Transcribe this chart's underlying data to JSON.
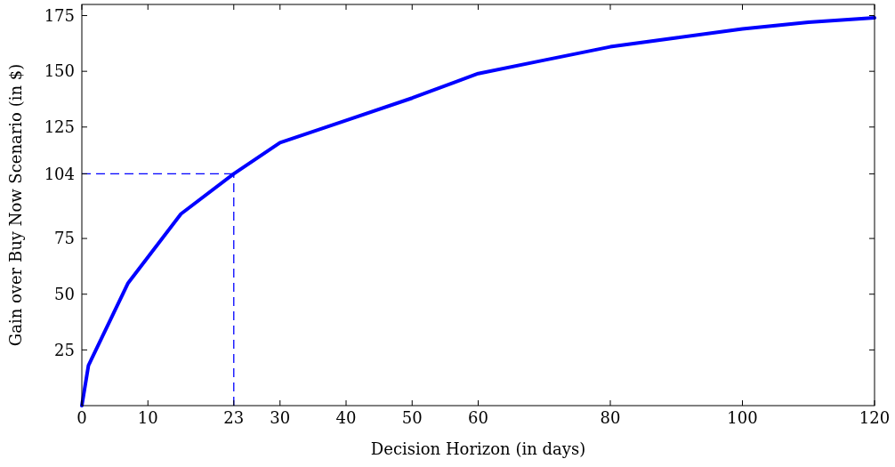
{
  "chart_data": {
    "type": "line",
    "xlabel": "Decision Horizon (in days)",
    "ylabel": "Gain over Buy Now Scenario (in $)",
    "x": [
      0,
      1,
      7,
      15,
      23,
      30,
      40,
      50,
      60,
      70,
      80,
      90,
      100,
      110,
      120
    ],
    "series": [
      {
        "color": "#0000ff",
        "values": [
          0,
          18,
          55,
          86,
          104,
          118,
          128,
          138,
          149,
          155,
          161,
          165,
          169,
          172,
          174
        ]
      }
    ],
    "xlim": [
      0,
      120
    ],
    "ylim": [
      0,
      180
    ],
    "xticks": [
      0,
      10,
      23,
      30,
      40,
      50,
      60,
      80,
      100,
      120
    ],
    "yticks": [
      25,
      50,
      75,
      104,
      125,
      150,
      175
    ],
    "ref_lines": [
      {
        "axis": "x",
        "value": 23,
        "color": "#0000ff",
        "line_style": "dashed"
      },
      {
        "axis": "y",
        "value": 104,
        "color": "#0000ff",
        "line_style": "dashed"
      }
    ],
    "grid": false,
    "marker": "none",
    "line_style": "solid"
  }
}
